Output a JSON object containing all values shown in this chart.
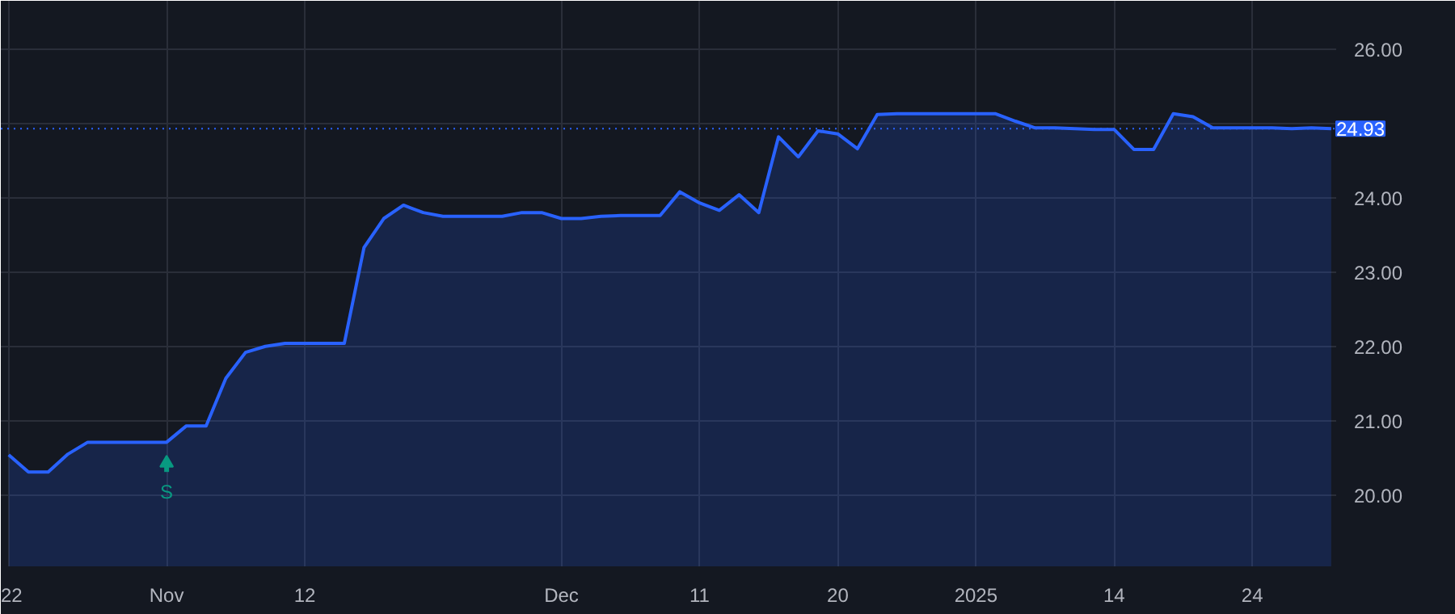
{
  "chart_data": {
    "type": "area",
    "categories": [
      "22",
      null,
      null,
      null,
      null,
      null,
      null,
      null,
      "Nov",
      null,
      null,
      null,
      null,
      null,
      null,
      "12",
      null,
      null,
      null,
      null,
      null,
      null,
      null,
      null,
      null,
      null,
      null,
      null,
      "Dec",
      null,
      null,
      null,
      null,
      null,
      null,
      "11",
      null,
      null,
      null,
      null,
      null,
      null,
      "20",
      null,
      null,
      null,
      null,
      null,
      null,
      "2025",
      null,
      null,
      null,
      null,
      null,
      null,
      "14",
      null,
      null,
      null,
      null,
      null,
      null,
      "24",
      null,
      null,
      null,
      null
    ],
    "series": [
      {
        "color": "#2962ff",
        "values": [
          20.54,
          20.31,
          20.31,
          20.55,
          20.71,
          20.71,
          20.71,
          20.71,
          20.71,
          20.93,
          20.93,
          21.57,
          21.92,
          22.0,
          22.04,
          22.04,
          22.04,
          22.04,
          23.33,
          23.72,
          23.9,
          23.8,
          23.75,
          23.75,
          23.75,
          23.75,
          23.8,
          23.8,
          23.72,
          23.72,
          23.75,
          23.76,
          23.76,
          23.76,
          24.08,
          23.93,
          23.83,
          24.04,
          23.8,
          24.82,
          24.55,
          24.9,
          24.86,
          24.66,
          25.12,
          25.13,
          25.13,
          25.13,
          25.13,
          25.13,
          25.13,
          25.03,
          24.94,
          24.94,
          24.93,
          24.92,
          24.92,
          24.65,
          24.65,
          25.13,
          25.09,
          24.94,
          24.94,
          24.94,
          24.94,
          24.93,
          24.94,
          24.93
        ]
      }
    ],
    "ylim": [
      19.04,
      26.65
    ],
    "yticks": [
      {
        "value": 20,
        "label": "20.00"
      },
      {
        "value": 21,
        "label": "21.00"
      },
      {
        "value": 22,
        "label": "22.00"
      },
      {
        "value": 23,
        "label": "23.00"
      },
      {
        "value": 24,
        "label": "24.00"
      },
      {
        "value": 25,
        "label": null
      },
      {
        "value": 26,
        "label": "26.00"
      }
    ],
    "grid": true,
    "ref_lines": [
      {
        "axis": "y",
        "value": 24.93,
        "label": "24.93",
        "color": "#2962ff",
        "line_style": "dotted"
      }
    ],
    "annotations": [
      {
        "text": "S",
        "x": "Nov",
        "y": 20.71
      }
    ]
  }
}
